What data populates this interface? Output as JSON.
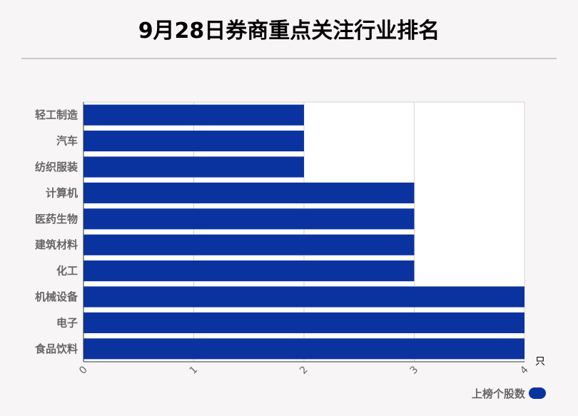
{
  "title": "9月28日券商重点关注行业排名",
  "chart_data": {
    "type": "bar",
    "orientation": "horizontal",
    "title": "9月28日券商重点关注行业排名",
    "categories": [
      "轻工制造",
      "汽车",
      "纺织服装",
      "计算机",
      "医药生物",
      "建筑材料",
      "化工",
      "机械设备",
      "电子",
      "食品饮料"
    ],
    "series": [
      {
        "name": "上榜个股数",
        "values": [
          2,
          2,
          2,
          3,
          3,
          3,
          3,
          4,
          4,
          4
        ],
        "color": "#0b33a0"
      }
    ],
    "xlim": [
      0,
      4
    ],
    "xticks": [
      "0",
      "1",
      "2",
      "3",
      "4"
    ],
    "xunit": "只",
    "grid": true,
    "legend_position": "bottom-right"
  }
}
